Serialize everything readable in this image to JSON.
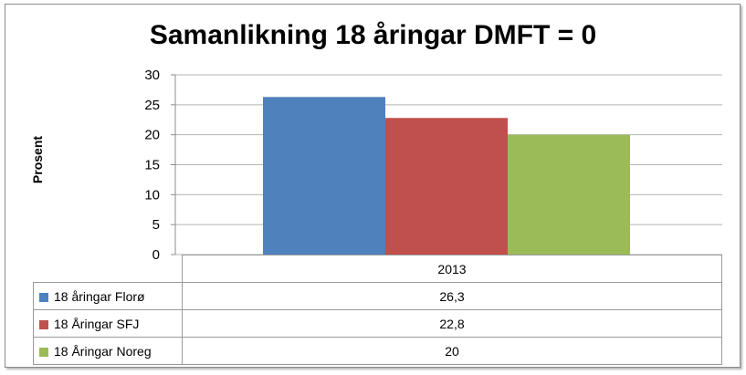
{
  "chart_data": {
    "type": "bar",
    "title": "Samanlikning 18 åringar DMFT = 0",
    "ylabel": "Prosent",
    "xlabel": "",
    "categories": [
      "2013"
    ],
    "ylim": [
      0,
      30
    ],
    "yticks": [
      "0",
      "5",
      "10",
      "15",
      "20",
      "25",
      "30"
    ],
    "grid": true,
    "legend": "data-table",
    "series": [
      {
        "name": "18 åringar Florø",
        "values": [
          26.3
        ],
        "display": "26,3",
        "color": "#4f81bd"
      },
      {
        "name": "18 Åringar SFJ",
        "values": [
          22.8
        ],
        "display": "22,8",
        "color": "#c0504d"
      },
      {
        "name": "18 Åringar Noreg",
        "values": [
          20
        ],
        "display": "20",
        "color": "#9bbb59"
      }
    ]
  }
}
